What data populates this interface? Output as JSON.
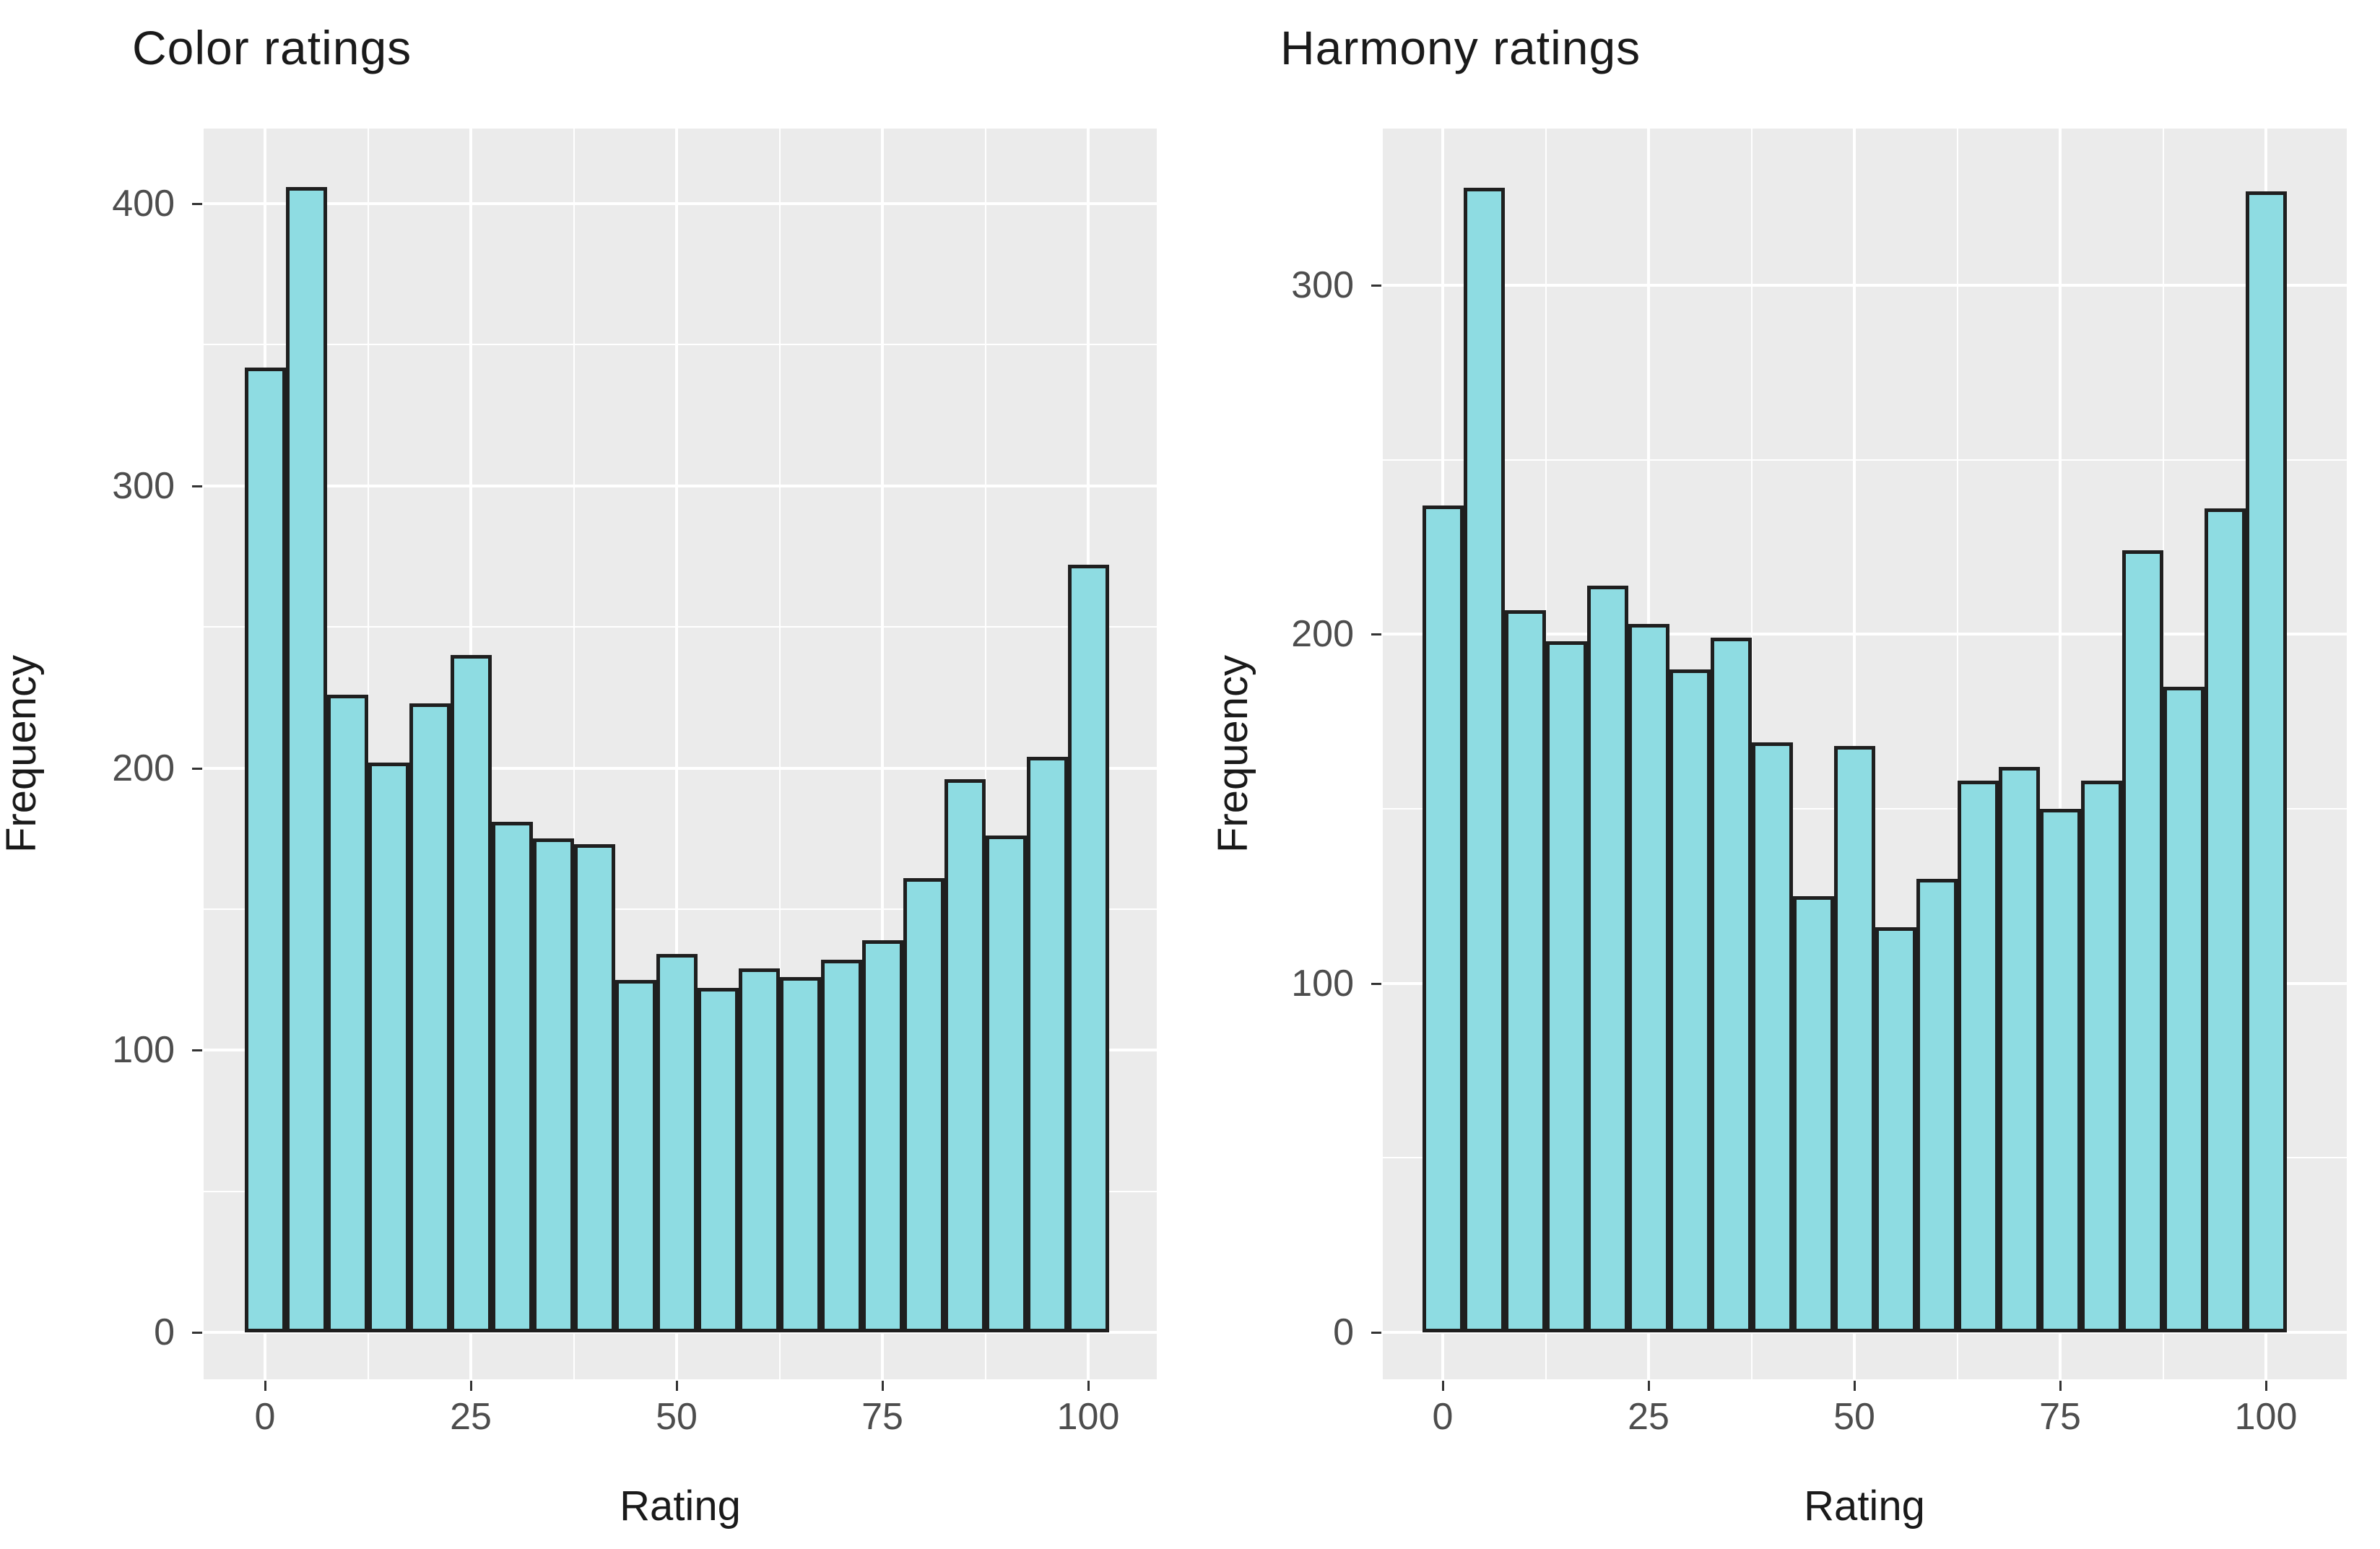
{
  "page": {
    "background": "#FFFFFF"
  },
  "chart_data": [
    {
      "type": "bar",
      "subtype": "histogram",
      "title": "Color ratings",
      "xlabel": "Rating",
      "ylabel": "Frequency",
      "categories": [
        0,
        5,
        10,
        15,
        20,
        25,
        30,
        35,
        40,
        45,
        50,
        55,
        60,
        65,
        70,
        75,
        80,
        85,
        90,
        95,
        100
      ],
      "values": [
        342,
        406,
        226,
        202,
        223,
        240,
        181,
        175,
        173,
        125,
        134,
        122,
        129,
        126,
        132,
        139,
        161,
        196,
        176,
        204,
        272
      ],
      "bin_width": 5,
      "x_ticks": [
        0,
        25,
        50,
        75,
        100
      ],
      "y_ticks": [
        0,
        100,
        200,
        300,
        400
      ],
      "xlim": [
        -7.75,
        107.75
      ],
      "ylim": [
        0,
        427
      ],
      "grid": "major+minor",
      "legend": "none"
    },
    {
      "type": "bar",
      "subtype": "histogram",
      "title": "Harmony ratings",
      "xlabel": "Rating",
      "ylabel": "Frequency",
      "categories": [
        0,
        5,
        10,
        15,
        20,
        25,
        30,
        35,
        40,
        45,
        50,
        55,
        60,
        65,
        70,
        75,
        80,
        85,
        90,
        95,
        100
      ],
      "values": [
        237,
        328,
        207,
        198,
        214,
        203,
        190,
        199,
        169,
        125,
        168,
        116,
        130,
        158,
        162,
        150,
        158,
        224,
        185,
        236,
        327
      ],
      "bin_width": 5,
      "x_ticks": [
        0,
        25,
        50,
        75,
        100
      ],
      "y_ticks": [
        0,
        100,
        200,
        300
      ],
      "xlim": [
        -7.75,
        107.75
      ],
      "ylim": [
        0,
        345
      ],
      "grid": "major+minor",
      "legend": "none"
    }
  ],
  "style": {
    "bar_fill": "#8EDCE2",
    "bar_border": "#1F1F1F",
    "panel_bg": "#EBEBEB",
    "grid_color": "#FFFFFF",
    "tick_label_color": "#4D4D4D",
    "text_color": "#1A1A1A"
  }
}
